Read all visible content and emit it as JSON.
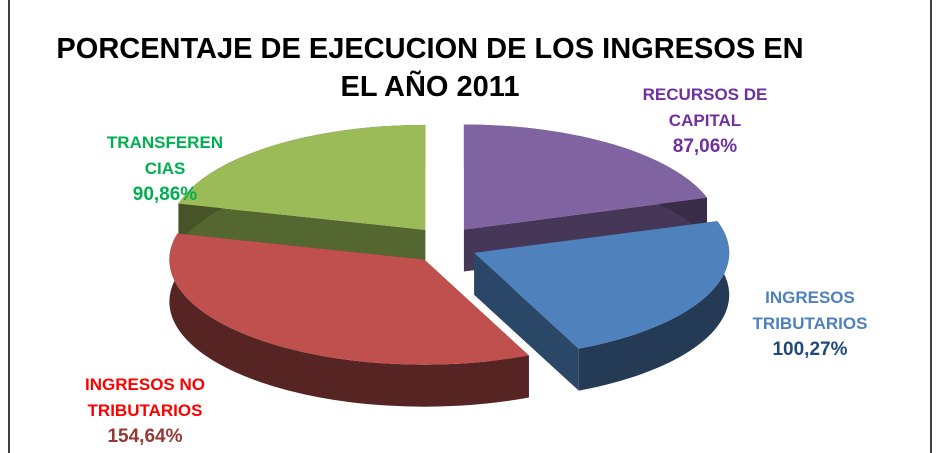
{
  "chart_data": {
    "type": "pie3d",
    "title": "PORCENTAJE DE EJECUCION DE LOS INGRESOS EN EL AÑO 2011",
    "categories": [
      "RECURSOS DE CAPITAL",
      "INGRESOS TRIBUTARIOS",
      "INGRESOS NO TRIBUTARIOS",
      "TRANSFERENCIAS"
    ],
    "values": [
      87.06,
      100.27,
      154.64,
      90.86
    ],
    "value_labels": [
      "87,06%",
      "100,27%",
      "154,64%",
      "90,86%"
    ],
    "colors": [
      "#8064a2",
      "#4f81bd",
      "#c0504d",
      "#9bbb59"
    ],
    "label_colors": [
      "#7030a0",
      "#4f81bd",
      "#ff0000",
      "#00b050"
    ],
    "value_label_colors": [
      "#7030a0",
      "#1f497d",
      "#953735",
      "#00b050"
    ]
  }
}
